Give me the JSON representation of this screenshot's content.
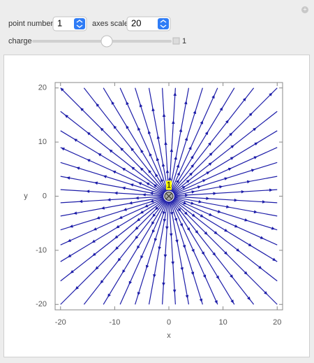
{
  "controls": {
    "point_number": {
      "label": "point number",
      "value": "1"
    },
    "axes_scale": {
      "label": "axes scale",
      "value": "20"
    },
    "charge": {
      "label": "charge",
      "value": 1
    }
  },
  "chart_data": {
    "type": "streamplot",
    "x_label": "x",
    "y_label": "y",
    "xlim": [
      -21,
      21
    ],
    "ylim": [
      -21,
      21
    ],
    "xticks": [
      -20,
      -10,
      0,
      10,
      20
    ],
    "yticks": [
      -20,
      -10,
      0,
      10,
      20
    ],
    "color": "#1c1ca8",
    "points": [
      {
        "x": 0,
        "y": 0,
        "label": "1"
      }
    ]
  }
}
